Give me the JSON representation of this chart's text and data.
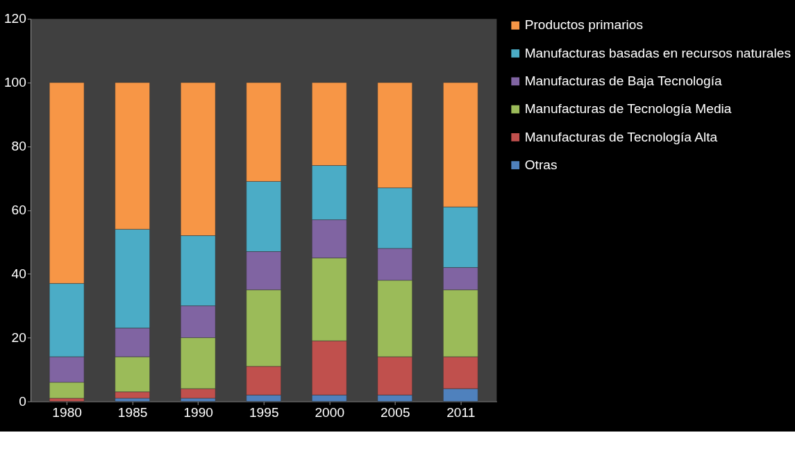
{
  "chart_data": {
    "type": "bar",
    "stacked": true,
    "categories": [
      "1980",
      "1985",
      "1990",
      "1995",
      "2000",
      "2005",
      "2011"
    ],
    "series": [
      {
        "name": "Otras",
        "color": "#4f81bd",
        "values": [
          0,
          1,
          1,
          2,
          2,
          2,
          4
        ]
      },
      {
        "name": "Manufacturas de Tecnología Alta",
        "color": "#c0504d",
        "values": [
          1,
          2,
          3,
          9,
          17,
          12,
          10
        ]
      },
      {
        "name": "Manufacturas de Tecnología Media",
        "color": "#9bbb59",
        "values": [
          5,
          11,
          16,
          24,
          26,
          24,
          21
        ]
      },
      {
        "name": "Manufacturas de Baja Tecnología",
        "color": "#8064a2",
        "values": [
          8,
          9,
          10,
          12,
          12,
          10,
          7
        ]
      },
      {
        "name": "Manufacturas basadas en recursos naturales",
        "color": "#4bacc6",
        "values": [
          23,
          31,
          22,
          22,
          17,
          19,
          19
        ]
      },
      {
        "name": "Productos primarios",
        "color": "#f79646",
        "values": [
          63,
          46,
          48,
          31,
          26,
          33,
          39
        ]
      }
    ],
    "ylim": [
      0,
      120
    ],
    "yticks": [
      0,
      20,
      40,
      60,
      80,
      100,
      120
    ],
    "grid": false,
    "legend": "right"
  }
}
